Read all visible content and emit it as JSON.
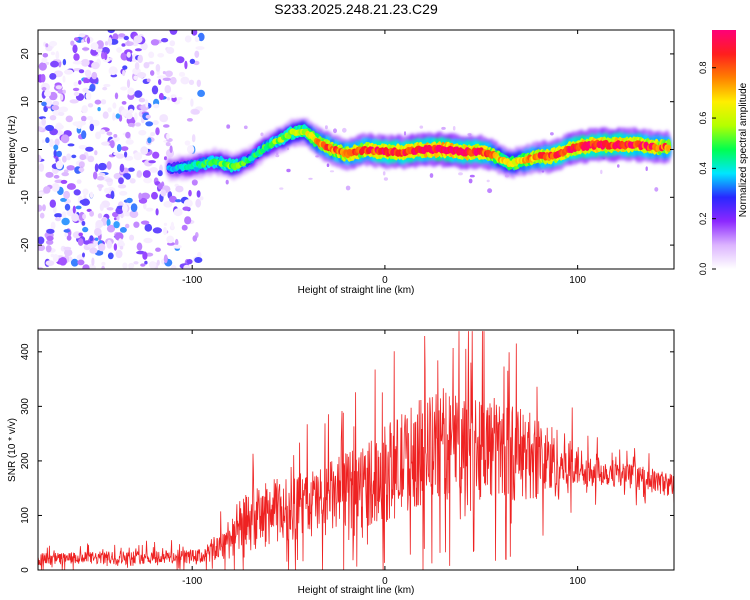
{
  "title": "S233.2025.248.21.23.C29",
  "chart_data": [
    {
      "type": "heatmap",
      "name": "spectrogram",
      "xlabel": "Height of straight line (km)",
      "ylabel": "Frequency (Hz)",
      "xlim": [
        -180,
        150
      ],
      "ylim": [
        -25,
        25
      ],
      "x_ticks": [
        -100,
        0,
        100
      ],
      "y_ticks": [
        -20,
        -10,
        0,
        10,
        20
      ],
      "x_tick_labels": [
        "-100",
        "0",
        "100"
      ],
      "y_tick_labels": [
        "-20",
        "-10",
        "0",
        "10",
        "20"
      ],
      "ridge": {
        "x": [
          -112,
          -100,
          -88,
          -78,
          -70,
          -62,
          -55,
          -48,
          -42,
          -36,
          -30,
          -20,
          -10,
          0,
          10,
          20,
          30,
          40,
          50,
          55,
          60,
          65,
          70,
          75,
          80,
          85,
          90,
          95,
          100,
          110,
          120,
          130,
          140,
          148
        ],
        "freq_hz": [
          -4,
          -3.5,
          -2.5,
          -3.5,
          -2,
          0.5,
          2,
          3.5,
          4,
          2,
          0.5,
          -1,
          0,
          -0.5,
          -0.5,
          0,
          0,
          -0.5,
          -0.5,
          -1,
          -2,
          -3,
          -2.5,
          -2,
          -1.5,
          -1.5,
          -1,
          0,
          0.5,
          1,
          1,
          1,
          0.5,
          0.5
        ],
        "amplitude": [
          0.35,
          0.45,
          0.5,
          0.55,
          0.45,
          0.5,
          0.55,
          0.6,
          0.62,
          0.7,
          0.8,
          0.8,
          0.85,
          0.9,
          0.9,
          0.92,
          0.95,
          0.92,
          0.9,
          0.8,
          0.7,
          0.65,
          0.7,
          0.75,
          0.8,
          0.85,
          0.85,
          0.88,
          0.9,
          0.92,
          0.9,
          0.9,
          0.85,
          0.8
        ]
      },
      "noise_region_x": [
        -180,
        -95
      ],
      "colorbar": {
        "label": "Normalized spectral amplitude",
        "range": [
          0.0,
          0.95
        ],
        "ticks": [
          0.0,
          0.2,
          0.4,
          0.6,
          0.8
        ],
        "tick_labels": [
          "0.0",
          "0.2",
          "0.4",
          "0.6",
          "0.8"
        ],
        "colors": [
          "#ffffff",
          "#dcb4ff",
          "#8c28ff",
          "#2828ff",
          "#00e6ff",
          "#00ff50",
          "#b4ff00",
          "#ffee00",
          "#ff8000",
          "#ff1e1e",
          "#ff0078"
        ]
      }
    },
    {
      "type": "line",
      "name": "snr",
      "xlabel": "Height of straight line (km)",
      "ylabel": "SNR (10 * v/v)",
      "xlim": [
        -180,
        150
      ],
      "ylim": [
        0,
        440
      ],
      "x_ticks": [
        -100,
        0,
        100
      ],
      "y_ticks": [
        0,
        100,
        200,
        300,
        400
      ],
      "x_tick_labels": [
        "-100",
        "0",
        "100"
      ],
      "y_tick_labels": [
        "0",
        "100",
        "200",
        "300",
        "400"
      ],
      "color": "#ee2222",
      "envelope": {
        "x": [
          -180,
          -95,
          -85,
          -75,
          -60,
          -45,
          -30,
          -15,
          0,
          15,
          30,
          45,
          60,
          75,
          90,
          100,
          115,
          130,
          150
        ],
        "mean": [
          20,
          25,
          45,
          80,
          105,
          115,
          130,
          150,
          175,
          210,
          230,
          235,
          220,
          210,
          195,
          190,
          180,
          170,
          155
        ],
        "spread": [
          15,
          18,
          40,
          70,
          80,
          85,
          90,
          100,
          120,
          130,
          140,
          140,
          125,
          110,
          90,
          50,
          35,
          30,
          30
        ]
      }
    }
  ]
}
